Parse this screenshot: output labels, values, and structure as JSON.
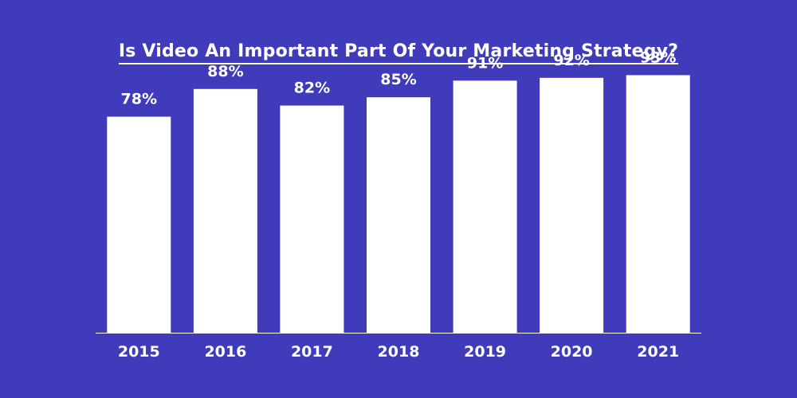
{
  "chart_data": {
    "type": "bar",
    "title": "Is Video An Important Part Of Your Marketing Strategy?",
    "xlabel": "",
    "ylabel": "",
    "categories": [
      "2015",
      "2016",
      "2017",
      "2018",
      "2019",
      "2020",
      "2021"
    ],
    "values": [
      78,
      88,
      82,
      85,
      91,
      92,
      93
    ],
    "data_labels": [
      "78%",
      "88%",
      "82%",
      "85%",
      "91%",
      "92%",
      "93%"
    ],
    "ylim": [
      0,
      100
    ],
    "grid": false,
    "legend": "none",
    "colors": {
      "background": "#403bbb",
      "bars": "#ffffff",
      "text": "#ffffff",
      "axis": "#ffffff"
    }
  }
}
